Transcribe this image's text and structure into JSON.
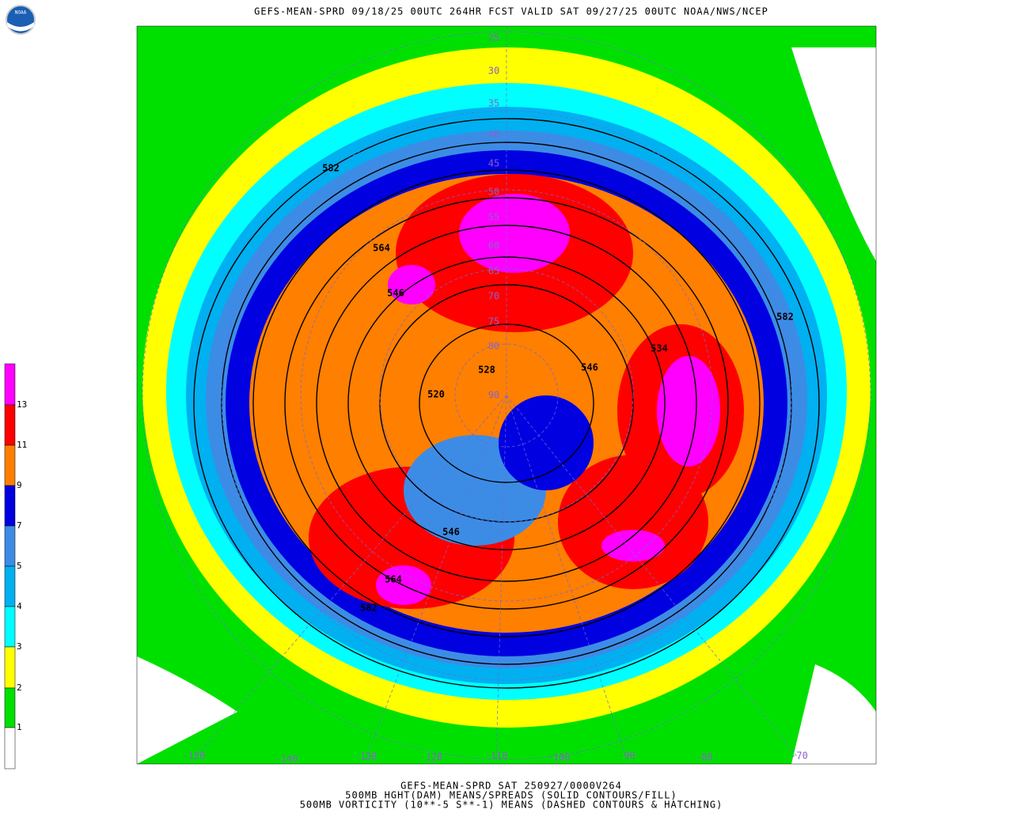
{
  "header": {
    "title": "GEFS-MEAN-SPRD 09/18/25 00UTC 264HR FCST VALID SAT 09/27/25 00UTC NOAA/NWS/NCEP"
  },
  "logo": "NOAA",
  "colorbar": {
    "labels": [
      "1",
      "2",
      "3",
      "4",
      "5",
      "7",
      "9",
      "11",
      "13"
    ]
  },
  "latitude_labels": [
    "25",
    "30",
    "35",
    "40",
    "45",
    "50",
    "55",
    "60",
    "65",
    "70",
    "75",
    "80",
    "90"
  ],
  "longitude_labels": [
    "-150",
    "-140",
    "-130",
    "-120",
    "-110",
    "-100",
    "-90",
    "-80",
    "-70"
  ],
  "contour_labels": [
    "582",
    "564",
    "546",
    "528",
    "520",
    "546",
    "534",
    "582",
    "546",
    "564",
    "582"
  ],
  "footer": [
    "GEFS-MEAN-SPRD SAT 250927/0000V264",
    "500MB HGHT(DAM) MEANS/SPREADS (SOLID CONTOURS/FILL)",
    "500MB VORTICITY (10**-5 S**-1) MEANS (DASHED CONTOURS & HATCHING)"
  ]
}
